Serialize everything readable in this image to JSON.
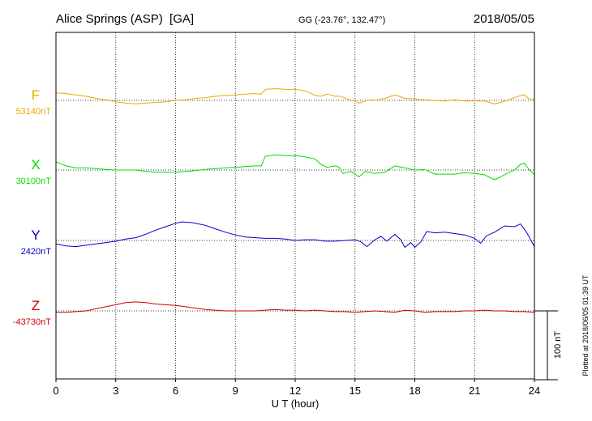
{
  "header": {
    "station": "Alice Springs (ASP)  [GA]",
    "coords": "GG (-23.76°, 132.47°)",
    "date": "2018/05/05"
  },
  "footer_note": "Plotted at 2018/06/05 01:39 UT",
  "scale_bar": {
    "label": "100 nT",
    "value_nT": 100
  },
  "colors": {
    "F": "#f0a800",
    "X": "#00dd00",
    "Y": "#0000cc",
    "Z": "#cc0000",
    "grid": "#000000"
  },
  "chart_data": {
    "type": "line",
    "xlabel": "U T (hour)",
    "xlim": [
      0,
      24
    ],
    "xticks": [
      0,
      3,
      6,
      9,
      12,
      15,
      18,
      21,
      24
    ],
    "grid": true,
    "y_units": "nT (offset from baseline)",
    "series": [
      {
        "name": "F",
        "baseline": "53140nT",
        "color": "#f0a800",
        "points": [
          [
            0,
            11
          ],
          [
            0.5,
            10
          ],
          [
            1,
            8
          ],
          [
            1.5,
            6
          ],
          [
            2,
            3
          ],
          [
            2.5,
            1
          ],
          [
            3,
            -2
          ],
          [
            3.5,
            -4
          ],
          [
            4,
            -5
          ],
          [
            4.5,
            -4
          ],
          [
            5,
            -3
          ],
          [
            5.5,
            -2
          ],
          [
            6,
            0
          ],
          [
            6.5,
            1
          ],
          [
            7,
            3
          ],
          [
            7.5,
            4
          ],
          [
            8,
            6
          ],
          [
            8.5,
            7
          ],
          [
            9,
            8
          ],
          [
            9.5,
            9
          ],
          [
            10,
            10
          ],
          [
            10.3,
            9
          ],
          [
            10.5,
            16
          ],
          [
            11,
            17
          ],
          [
            11.5,
            16
          ],
          [
            12,
            16
          ],
          [
            12.5,
            14
          ],
          [
            12.8,
            10
          ],
          [
            13,
            7
          ],
          [
            13.3,
            6
          ],
          [
            13.6,
            9
          ],
          [
            14,
            6
          ],
          [
            14.3,
            6
          ],
          [
            14.6,
            2
          ],
          [
            15,
            -1
          ],
          [
            15.2,
            -4
          ],
          [
            15.5,
            -1
          ],
          [
            15.8,
            1
          ],
          [
            16,
            0
          ],
          [
            16.5,
            3
          ],
          [
            17,
            8
          ],
          [
            17.5,
            3
          ],
          [
            18,
            2
          ],
          [
            18.5,
            1
          ],
          [
            19,
            0
          ],
          [
            19.5,
            -1
          ],
          [
            20,
            1
          ],
          [
            20.5,
            -1
          ],
          [
            21,
            -1
          ],
          [
            21.5,
            -1
          ],
          [
            22,
            -5
          ],
          [
            22.3,
            -3
          ],
          [
            22.6,
            0
          ],
          [
            23,
            4
          ],
          [
            23.3,
            7
          ],
          [
            23.5,
            8
          ],
          [
            23.7,
            3
          ],
          [
            24,
            1
          ]
        ]
      },
      {
        "name": "X",
        "baseline": "30100nT",
        "color": "#00dd00",
        "points": [
          [
            0,
            12
          ],
          [
            0.5,
            6
          ],
          [
            1,
            3
          ],
          [
            1.5,
            3
          ],
          [
            2,
            2
          ],
          [
            2.5,
            1
          ],
          [
            3,
            0
          ],
          [
            3.5,
            0
          ],
          [
            4,
            0
          ],
          [
            4.5,
            -2
          ],
          [
            5,
            -3
          ],
          [
            5.5,
            -3
          ],
          [
            6,
            -3
          ],
          [
            6.5,
            -2
          ],
          [
            7,
            -1
          ],
          [
            7.5,
            1
          ],
          [
            8,
            2
          ],
          [
            8.5,
            3
          ],
          [
            9,
            4
          ],
          [
            9.5,
            5
          ],
          [
            10,
            6
          ],
          [
            10.3,
            6
          ],
          [
            10.5,
            20
          ],
          [
            11,
            22
          ],
          [
            11.5,
            21
          ],
          [
            12,
            21
          ],
          [
            12.5,
            19
          ],
          [
            13,
            16
          ],
          [
            13.3,
            8
          ],
          [
            13.6,
            4
          ],
          [
            14,
            6
          ],
          [
            14.2,
            4
          ],
          [
            14.4,
            -5
          ],
          [
            14.8,
            -2
          ],
          [
            15.2,
            -10
          ],
          [
            15.5,
            -2
          ],
          [
            16,
            -5
          ],
          [
            16.5,
            -3
          ],
          [
            17,
            6
          ],
          [
            17.5,
            3
          ],
          [
            18,
            0
          ],
          [
            18.5,
            1
          ],
          [
            19,
            -6
          ],
          [
            19.5,
            -6
          ],
          [
            20,
            -6
          ],
          [
            20.5,
            -4
          ],
          [
            21,
            -5
          ],
          [
            21.5,
            -7
          ],
          [
            22,
            -14
          ],
          [
            22.3,
            -10
          ],
          [
            22.6,
            -5
          ],
          [
            23,
            0
          ],
          [
            23.3,
            8
          ],
          [
            23.5,
            10
          ],
          [
            23.7,
            2
          ],
          [
            24,
            -7
          ]
        ]
      },
      {
        "name": "Y",
        "baseline": "2420nT",
        "color": "#0000cc",
        "points": [
          [
            0,
            -5
          ],
          [
            0.5,
            -8
          ],
          [
            1,
            -9
          ],
          [
            1.5,
            -7
          ],
          [
            2,
            -5
          ],
          [
            2.5,
            -3
          ],
          [
            3,
            -1
          ],
          [
            3.5,
            2
          ],
          [
            4,
            4
          ],
          [
            4.5,
            9
          ],
          [
            5,
            15
          ],
          [
            5.5,
            20
          ],
          [
            6,
            25
          ],
          [
            6.3,
            27
          ],
          [
            6.8,
            26
          ],
          [
            7.5,
            22
          ],
          [
            8,
            17
          ],
          [
            8.5,
            12
          ],
          [
            9,
            8
          ],
          [
            9.5,
            5
          ],
          [
            10,
            4
          ],
          [
            10.5,
            3
          ],
          [
            11,
            3
          ],
          [
            11.5,
            2
          ],
          [
            12,
            0
          ],
          [
            12.5,
            1
          ],
          [
            13,
            1
          ],
          [
            13.5,
            -1
          ],
          [
            14,
            -1
          ],
          [
            14.5,
            0
          ],
          [
            15,
            1
          ],
          [
            15.3,
            -2
          ],
          [
            15.6,
            -9
          ],
          [
            16,
            1
          ],
          [
            16.3,
            6
          ],
          [
            16.6,
            -1
          ],
          [
            17,
            9
          ],
          [
            17.3,
            1
          ],
          [
            17.5,
            -10
          ],
          [
            17.8,
            -3
          ],
          [
            18,
            -10
          ],
          [
            18.3,
            -2
          ],
          [
            18.6,
            13
          ],
          [
            19,
            11
          ],
          [
            19.5,
            12
          ],
          [
            20,
            10
          ],
          [
            20.5,
            8
          ],
          [
            21,
            3
          ],
          [
            21.3,
            -4
          ],
          [
            21.6,
            7
          ],
          [
            22,
            12
          ],
          [
            22.5,
            21
          ],
          [
            23,
            20
          ],
          [
            23.3,
            24
          ],
          [
            23.6,
            12
          ],
          [
            24,
            -9
          ]
        ]
      },
      {
        "name": "Z",
        "baseline": "-43730nT",
        "color": "#cc0000",
        "points": [
          [
            0,
            -2
          ],
          [
            0.5,
            -2
          ],
          [
            1,
            -1
          ],
          [
            1.5,
            0
          ],
          [
            2,
            3
          ],
          [
            2.5,
            6
          ],
          [
            3,
            9
          ],
          [
            3.5,
            12
          ],
          [
            4,
            13
          ],
          [
            4.5,
            12
          ],
          [
            5,
            10
          ],
          [
            5.5,
            9
          ],
          [
            6,
            8
          ],
          [
            6.5,
            6
          ],
          [
            7,
            4
          ],
          [
            7.5,
            2
          ],
          [
            8,
            1
          ],
          [
            8.5,
            0
          ],
          [
            9,
            0
          ],
          [
            9.5,
            0
          ],
          [
            10,
            0
          ],
          [
            10.5,
            1
          ],
          [
            11,
            2
          ],
          [
            11.5,
            1
          ],
          [
            12,
            1
          ],
          [
            12.5,
            0
          ],
          [
            13,
            1
          ],
          [
            13.5,
            0
          ],
          [
            14,
            -1
          ],
          [
            14.5,
            -1
          ],
          [
            15,
            -2
          ],
          [
            15.5,
            -1
          ],
          [
            16,
            0
          ],
          [
            16.5,
            -1
          ],
          [
            17,
            -2
          ],
          [
            17.5,
            1
          ],
          [
            18,
            0
          ],
          [
            18.5,
            -2
          ],
          [
            19,
            -1
          ],
          [
            19.5,
            -1
          ],
          [
            20,
            -1
          ],
          [
            20.5,
            0
          ],
          [
            21,
            0
          ],
          [
            21.5,
            1
          ],
          [
            22,
            0
          ],
          [
            22.5,
            0
          ],
          [
            23,
            -1
          ],
          [
            23.5,
            -1
          ],
          [
            24,
            -2
          ]
        ]
      }
    ]
  }
}
